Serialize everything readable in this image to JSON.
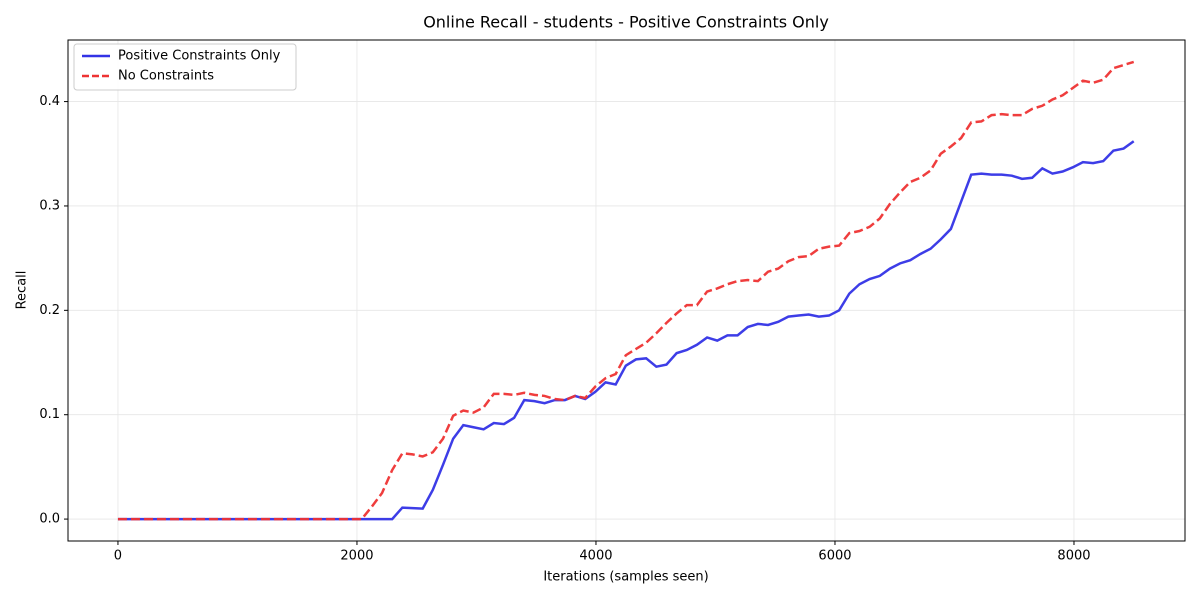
{
  "chart_data": {
    "type": "line",
    "title": "Online Recall - students - Positive Constraints Only",
    "xlabel": "Iterations (samples seen)",
    "ylabel": "Recall",
    "x": [
      0,
      85,
      170,
      255,
      340,
      425,
      510,
      595,
      680,
      765,
      850,
      935,
      1020,
      1105,
      1190,
      1275,
      1360,
      1445,
      1530,
      1615,
      1700,
      1785,
      1870,
      1955,
      2040,
      2125,
      2210,
      2295,
      2380,
      2465,
      2550,
      2635,
      2720,
      2805,
      2890,
      2975,
      3060,
      3145,
      3230,
      3315,
      3400,
      3485,
      3570,
      3655,
      3740,
      3825,
      3910,
      3995,
      4080,
      4165,
      4250,
      4335,
      4420,
      4505,
      4590,
      4675,
      4760,
      4845,
      4930,
      5015,
      5100,
      5185,
      5270,
      5355,
      5440,
      5525,
      5610,
      5695,
      5780,
      5865,
      5950,
      6035,
      6120,
      6205,
      6290,
      6375,
      6460,
      6545,
      6630,
      6715,
      6800,
      6885,
      6970,
      7055,
      7140,
      7225,
      7310,
      7395,
      7480,
      7565,
      7650,
      7735,
      7820,
      7905,
      7990,
      8075,
      8160,
      8245,
      8330,
      8415,
      8500
    ],
    "series": [
      {
        "name": "Positive Constraints Only",
        "color": "#3333e6",
        "dash": false,
        "values": [
          0,
          0,
          0,
          0,
          0,
          0,
          0,
          0,
          0,
          0,
          0,
          0,
          0,
          0,
          0,
          0,
          0,
          0,
          0,
          0,
          0,
          0,
          0,
          0,
          0,
          0,
          0,
          0,
          0.011,
          0.0105,
          0.01,
          0.028,
          0.052,
          0.077,
          0.09,
          0.088,
          0.086,
          0.092,
          0.091,
          0.097,
          0.114,
          0.113,
          0.111,
          0.114,
          0.114,
          0.118,
          0.115,
          0.122,
          0.131,
          0.129,
          0.147,
          0.153,
          0.154,
          0.146,
          0.148,
          0.159,
          0.162,
          0.167,
          0.174,
          0.171,
          0.176,
          0.176,
          0.184,
          0.187,
          0.186,
          0.189,
          0.194,
          0.195,
          0.196,
          0.194,
          0.195,
          0.2,
          0.216,
          0.225,
          0.23,
          0.233,
          0.24,
          0.245,
          0.248,
          0.254,
          0.259,
          0.268,
          0.278,
          0.304,
          0.33,
          0.331,
          0.33,
          0.33,
          0.329,
          0.326,
          0.327,
          0.336,
          0.331,
          0.333,
          0.337,
          0.342,
          0.341,
          0.343,
          0.353,
          0.355,
          0.362
        ]
      },
      {
        "name": "No Constraints",
        "color": "#ee3333",
        "dash": true,
        "values": [
          0,
          0,
          0,
          0,
          0,
          0,
          0,
          0,
          0,
          0,
          0,
          0,
          0,
          0,
          0,
          0,
          0,
          0,
          0,
          0,
          0,
          0,
          0,
          0,
          0,
          0.012,
          0.025,
          0.047,
          0.063,
          0.062,
          0.06,
          0.064,
          0.077,
          0.099,
          0.104,
          0.102,
          0.107,
          0.12,
          0.12,
          0.119,
          0.121,
          0.119,
          0.118,
          0.115,
          0.114,
          0.118,
          0.116,
          0.127,
          0.135,
          0.139,
          0.157,
          0.163,
          0.169,
          0.178,
          0.188,
          0.197,
          0.205,
          0.205,
          0.218,
          0.221,
          0.225,
          0.228,
          0.229,
          0.228,
          0.237,
          0.24,
          0.247,
          0.251,
          0.252,
          0.259,
          0.261,
          0.262,
          0.274,
          0.276,
          0.28,
          0.288,
          0.302,
          0.313,
          0.323,
          0.327,
          0.334,
          0.35,
          0.357,
          0.365,
          0.38,
          0.381,
          0.387,
          0.388,
          0.387,
          0.387,
          0.393,
          0.396,
          0.402,
          0.406,
          0.413,
          0.42,
          0.418,
          0.421,
          0.432,
          0.435,
          0.438
        ]
      }
    ],
    "xlim": [
      -418,
      8929
    ],
    "ylim": [
      -0.021,
      0.459
    ],
    "xticks": [
      0,
      2000,
      4000,
      6000,
      8000
    ],
    "yticks": [
      {
        "value": 0,
        "label": "0.0"
      },
      0.1,
      0.2,
      0.3,
      0.4
    ],
    "grid": true,
    "legend": "upper left"
  }
}
